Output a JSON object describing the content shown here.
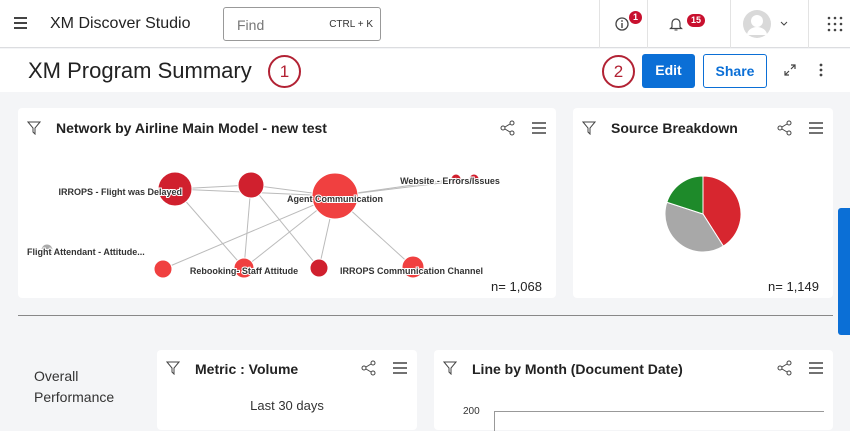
{
  "topbar": {
    "app_title": "XM Discover Studio",
    "search_placeholder": "Find",
    "search_shortcut": "CTRL + K",
    "info_badge": "1",
    "notifications_badge": "15"
  },
  "header": {
    "title": "XM Program Summary",
    "callout_1": "1",
    "callout_2": "2",
    "edit_label": "Edit",
    "share_label": "Share"
  },
  "network_widget": {
    "title": "Network by Airline Main Model - new test",
    "count": "n= 1,068",
    "nodes": [
      {
        "label": "IRROPS - Flight was Delayed",
        "color": "#d0202e"
      },
      {
        "label": "",
        "color": "#d0202e"
      },
      {
        "label": "Agent Communication",
        "color": "#f04040"
      },
      {
        "label": "Website - Errors/Issues",
        "color": "#d0202e"
      },
      {
        "label": "",
        "color": "#d0202e"
      },
      {
        "label": "Flight Attendant - Attitude...",
        "color": "#aaaaaa"
      },
      {
        "label": "",
        "color": "#f04040"
      },
      {
        "label": "Rebooking- Staff Attitude",
        "color": "#f04040"
      },
      {
        "label": "",
        "color": "#d0202e"
      },
      {
        "label": "IRROPS Communication Channel",
        "color": "#f04040"
      }
    ]
  },
  "source_widget": {
    "title": "Source Breakdown",
    "count": "n= 1,149",
    "slices": [
      {
        "fraction": 0.41,
        "color": "#d7262f"
      },
      {
        "fraction": 0.39,
        "color": "#a8a8a8"
      },
      {
        "fraction": 0.2,
        "color": "#1e8a2a"
      }
    ]
  },
  "section_label": "Overall Performance",
  "metric_widget": {
    "title": "Metric : Volume",
    "period": "Last 30 days"
  },
  "line_widget": {
    "title": "Line by Month (Document Date)",
    "y_tick_top": "200"
  }
}
